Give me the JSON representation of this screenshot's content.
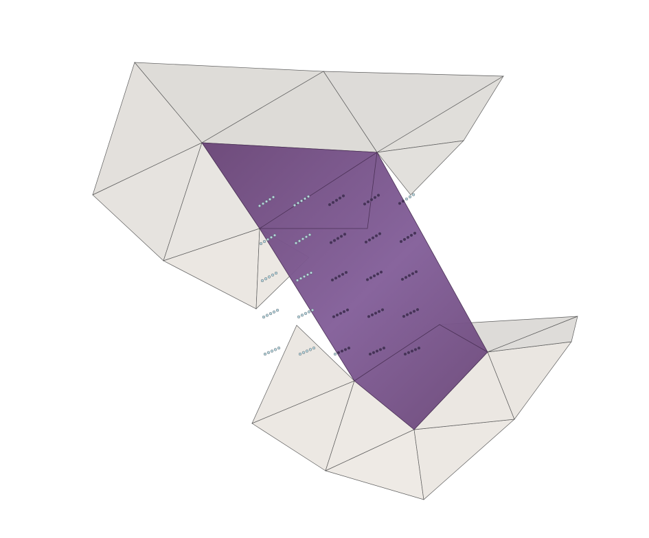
{
  "scene": {
    "type": "3d-mesh-render",
    "background": "#ffffff",
    "colors": {
      "surface_light": "#ebe7e2",
      "surface_shade": "#dddbd8",
      "plane": "#6e4b7c",
      "plane_highlight": "#8a649a",
      "edge": "#5a5a5a",
      "point_light": "#b8d4dc",
      "point_dark": "#4a2c5a"
    },
    "point_rows": 5,
    "point_columns": 6
  }
}
